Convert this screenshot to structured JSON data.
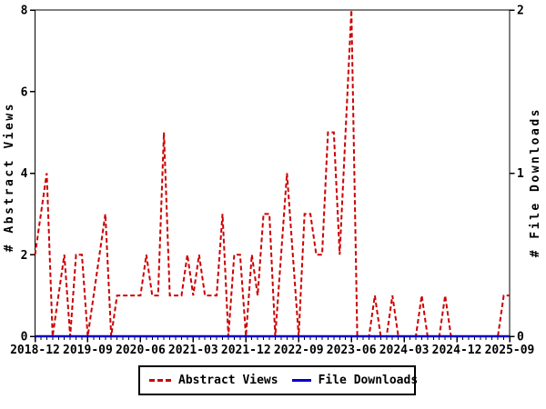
{
  "figure": {
    "background": "#ffffff",
    "colors": {
      "views": "#cc0000",
      "downloads": "#0000cc",
      "axis": "#000000"
    },
    "left_axis": {
      "title": "# Abstract Views",
      "tick_values": [
        0,
        2,
        4,
        6,
        8
      ]
    },
    "right_axis": {
      "title": "# File Downloads",
      "tick_values": [
        0,
        1,
        2
      ]
    },
    "x_axis": {
      "major_tick_every_months": 9,
      "minor_tick_every_months": 1,
      "major_labels": [
        "2018-12",
        "2019-09",
        "2020-06",
        "2021-03",
        "2021-12",
        "2022-09",
        "2023-06",
        "2024-03",
        "2024-12",
        "2025-09"
      ]
    },
    "legend": {
      "items": [
        {
          "label": "Abstract Views",
          "color": "#cc0000",
          "style": "dashed"
        },
        {
          "label": "File Downloads",
          "color": "#0000cc",
          "style": "solid"
        }
      ]
    }
  },
  "chart_data": {
    "type": "line",
    "title": "",
    "xlabel": "",
    "ylabel_left": "# Abstract Views",
    "ylabel_right": "# File Downloads",
    "ylim_left": [
      0,
      8
    ],
    "ylim_right": [
      0,
      2
    ],
    "grid": false,
    "legend_position": "bottom-center",
    "x": [
      "2018-12",
      "2019-01",
      "2019-02",
      "2019-03",
      "2019-04",
      "2019-05",
      "2019-06",
      "2019-07",
      "2019-08",
      "2019-09",
      "2019-10",
      "2019-11",
      "2019-12",
      "2020-01",
      "2020-02",
      "2020-03",
      "2020-04",
      "2020-05",
      "2020-06",
      "2020-07",
      "2020-08",
      "2020-09",
      "2020-10",
      "2020-11",
      "2020-12",
      "2021-01",
      "2021-02",
      "2021-03",
      "2021-04",
      "2021-05",
      "2021-06",
      "2021-07",
      "2021-08",
      "2021-09",
      "2021-10",
      "2021-11",
      "2021-12",
      "2022-01",
      "2022-02",
      "2022-03",
      "2022-04",
      "2022-05",
      "2022-06",
      "2022-07",
      "2022-08",
      "2022-09",
      "2022-10",
      "2022-11",
      "2022-12",
      "2023-01",
      "2023-02",
      "2023-03",
      "2023-04",
      "2023-05",
      "2023-06",
      "2023-07",
      "2023-08",
      "2023-09",
      "2023-10",
      "2023-11",
      "2023-12",
      "2024-01",
      "2024-02",
      "2024-03",
      "2024-04",
      "2024-05",
      "2024-06",
      "2024-07",
      "2024-08",
      "2024-09",
      "2024-10",
      "2024-11",
      "2024-12",
      "2025-01",
      "2025-02",
      "2025-03",
      "2025-04",
      "2025-05",
      "2025-06",
      "2025-07",
      "2025-08",
      "2025-09"
    ],
    "series": [
      {
        "name": "Abstract Views",
        "axis": "left",
        "style": "dashed",
        "color": "#cc0000",
        "values": [
          2,
          3,
          4,
          0,
          1,
          2,
          0,
          2,
          2,
          0,
          1,
          2,
          3,
          0,
          1,
          1,
          1,
          1,
          1,
          2,
          1,
          1,
          5,
          1,
          1,
          1,
          2,
          1,
          2,
          1,
          1,
          1,
          3,
          0,
          2,
          2,
          0,
          2,
          1,
          3,
          3,
          0,
          2,
          4,
          2,
          0,
          3,
          3,
          2,
          2,
          5,
          5,
          2,
          5,
          8,
          0,
          0,
          0,
          1,
          0,
          0,
          1,
          0,
          0,
          0,
          0,
          1,
          0,
          0,
          0,
          1,
          0,
          0,
          0,
          0,
          0,
          0,
          0,
          0,
          0,
          1,
          1
        ]
      },
      {
        "name": "File Downloads",
        "axis": "right",
        "style": "solid",
        "color": "#0000cc",
        "values": [
          0,
          0,
          0,
          0,
          0,
          0,
          0,
          0,
          0,
          0,
          0,
          0,
          0,
          0,
          0,
          0,
          0,
          0,
          0,
          0,
          0,
          0,
          0,
          0,
          0,
          0,
          0,
          0,
          0,
          0,
          0,
          0,
          0,
          0,
          0,
          0,
          0,
          0,
          0,
          0,
          0,
          0,
          0,
          0,
          0,
          0,
          0,
          0,
          0,
          0,
          0,
          0,
          0,
          0,
          0,
          0,
          0,
          0,
          0,
          0,
          0,
          0,
          0,
          0,
          0,
          0,
          0,
          0,
          0,
          0,
          0,
          0,
          0,
          0,
          0,
          0,
          0,
          0,
          0,
          0,
          0,
          0
        ]
      }
    ]
  }
}
